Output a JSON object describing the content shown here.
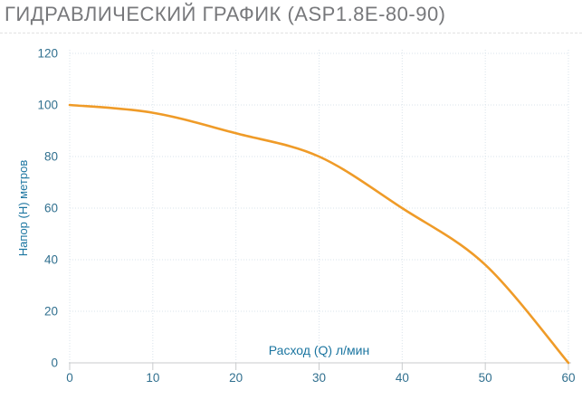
{
  "page": {
    "title": "ГИДРАВЛИЧЕСКИЙ ГРАФИК (ASP1.8E-80-90)"
  },
  "chart_data": {
    "type": "line",
    "title": "ГИДРАВЛИЧЕСКИЙ ГРАФИК (ASP1.8E-80-90)",
    "xlabel": "Расход (Q) л/мин",
    "ylabel": "Напор (H) метров",
    "xlim": [
      0,
      60
    ],
    "ylim": [
      0,
      120
    ],
    "xticks": [
      0,
      10,
      20,
      30,
      40,
      50,
      60
    ],
    "yticks": [
      0,
      20,
      40,
      60,
      80,
      100,
      120
    ],
    "grid": "dotted",
    "legend": "none",
    "series": [
      {
        "name": "pump-curve-ASP1.8E-80-90",
        "x": [
          0,
          10,
          20,
          30,
          40,
          50,
          60
        ],
        "y": [
          100,
          97,
          89,
          80,
          60,
          38,
          0
        ]
      }
    ],
    "colors": {
      "curve": "#EF9B28",
      "axis_title": "#1B75A0",
      "tick_label": "#31708F",
      "gridline": "#DAE3EB",
      "axis_line": "#C9CBCD",
      "page_title": "#77787B"
    }
  }
}
